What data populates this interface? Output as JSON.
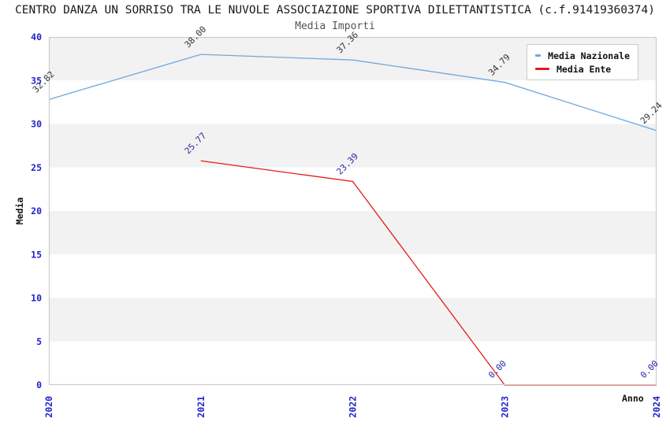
{
  "chart_data": {
    "type": "line",
    "title": "CENTRO DANZA UN SORRISO TRA LE NUVOLE ASSOCIAZIONE SPORTIVA DILETTANTISTICA (c.f.91419360374)",
    "subtitle": "Media Importi",
    "xlabel": "Anno",
    "ylabel": "Media",
    "x_categories": [
      "2020",
      "2021",
      "2022",
      "2023",
      "2024"
    ],
    "ylim": [
      0,
      40
    ],
    "yticks": [
      0,
      5,
      10,
      15,
      20,
      25,
      30,
      35,
      40
    ],
    "grid": "alternating horizontal bands every 5 units",
    "legend_position": "top-right",
    "series": [
      {
        "name": "Media Nazionale",
        "color": "#6fa8dc",
        "label_color": "#333333",
        "points": [
          {
            "x": "2020",
            "y": 32.82,
            "label": "32.82"
          },
          {
            "x": "2021",
            "y": 38.0,
            "label": "38.00"
          },
          {
            "x": "2022",
            "y": 37.36,
            "label": "37.36"
          },
          {
            "x": "2023",
            "y": 34.79,
            "label": "34.79"
          },
          {
            "x": "2024",
            "y": 29.24,
            "label": "29.24"
          }
        ]
      },
      {
        "name": "Media Ente",
        "color": "#e41a1c",
        "label_color": "#2929a8",
        "points": [
          {
            "x": "2021",
            "y": 25.77,
            "label": "25.77"
          },
          {
            "x": "2022",
            "y": 23.39,
            "label": "23.39"
          },
          {
            "x": "2023",
            "y": 0.0,
            "label": "0.00"
          },
          {
            "x": "2024",
            "y": 0.0,
            "label": "0.00"
          }
        ]
      }
    ]
  },
  "colors": {
    "tick_label": "#2222cc",
    "axis_border": "#cccccc",
    "band_gray": "#f2f2f2",
    "band_white": "#ffffff",
    "title_text": "#1a1a1a",
    "subtitle_text": "#555555"
  }
}
